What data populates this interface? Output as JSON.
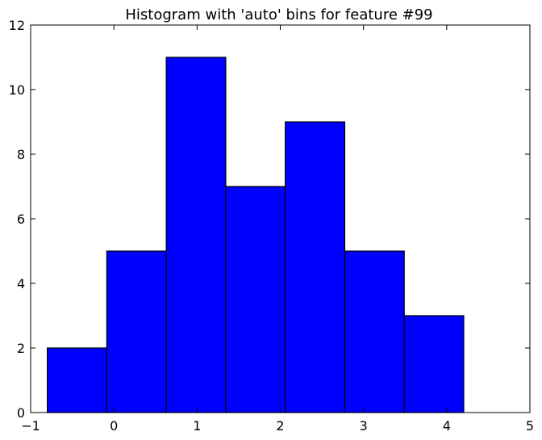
{
  "chart_data": {
    "type": "bar",
    "title": "Histogram with 'auto' bins for feature #99",
    "xlabel": "",
    "ylabel": "",
    "bin_edges": [
      -0.8,
      -0.085,
      0.63,
      1.345,
      2.06,
      2.775,
      3.49,
      4.205
    ],
    "counts": [
      2,
      5,
      11,
      7,
      9,
      5,
      3
    ],
    "xlim": [
      -1,
      5
    ],
    "ylim": [
      0,
      12
    ],
    "x_ticks": [
      -1,
      0,
      1,
      2,
      3,
      4,
      5
    ],
    "x_tick_labels": [
      "−1",
      "0",
      "1",
      "2",
      "3",
      "4",
      "5"
    ],
    "y_ticks": [
      0,
      2,
      4,
      6,
      8,
      10,
      12
    ],
    "y_tick_labels": [
      "0",
      "2",
      "4",
      "6",
      "8",
      "10",
      "12"
    ],
    "bar_color": "#0000ff",
    "edge_color": "#000000",
    "grid": false,
    "legend": "none"
  }
}
